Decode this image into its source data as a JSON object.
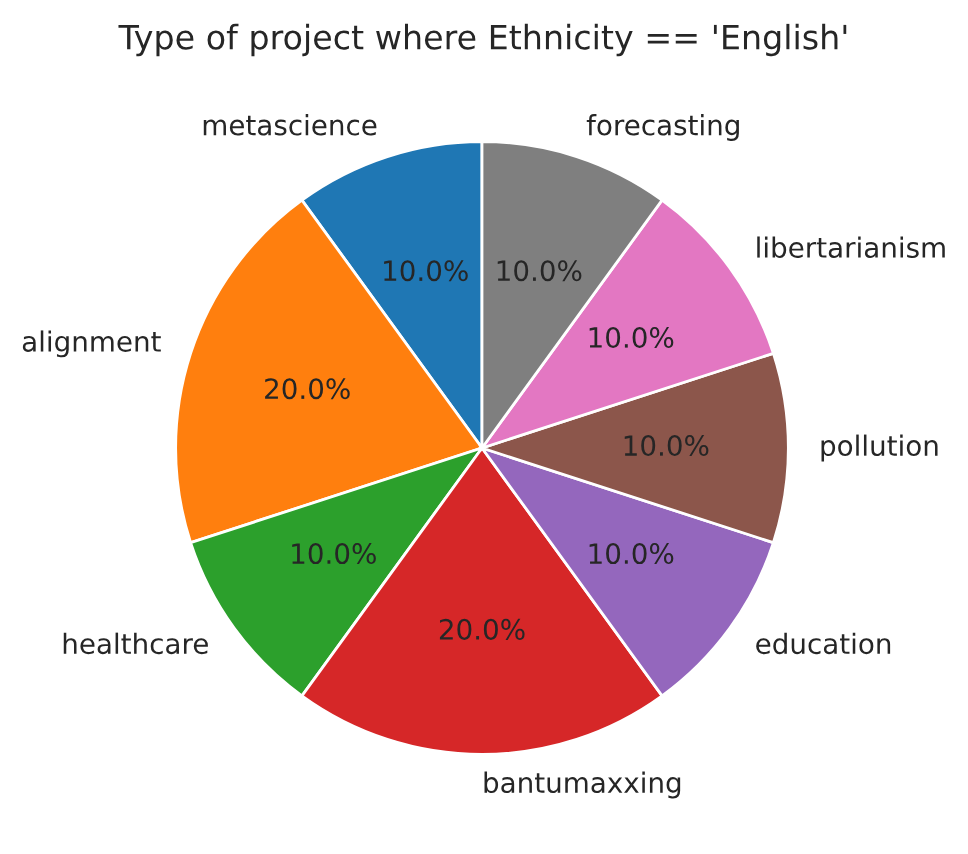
{
  "chart_data": {
    "type": "pie",
    "title": "Type of project where Ethnicity == 'English'",
    "categories": [
      "metascience",
      "alignment",
      "healthcare",
      "bantumaxxing",
      "education",
      "pollution",
      "libertarianism",
      "forecasting"
    ],
    "values": [
      10,
      20,
      10,
      20,
      10,
      10,
      10,
      10
    ],
    "value_labels": [
      "10.0%",
      "20.0%",
      "10.0%",
      "20.0%",
      "10.0%",
      "10.0%",
      "10.0%",
      "10.0%"
    ],
    "colors": [
      "#1f77b4",
      "#ff7f0e",
      "#2ca02c",
      "#d62728",
      "#9467bd",
      "#8c564b",
      "#e377c2",
      "#7f7f7f"
    ]
  }
}
